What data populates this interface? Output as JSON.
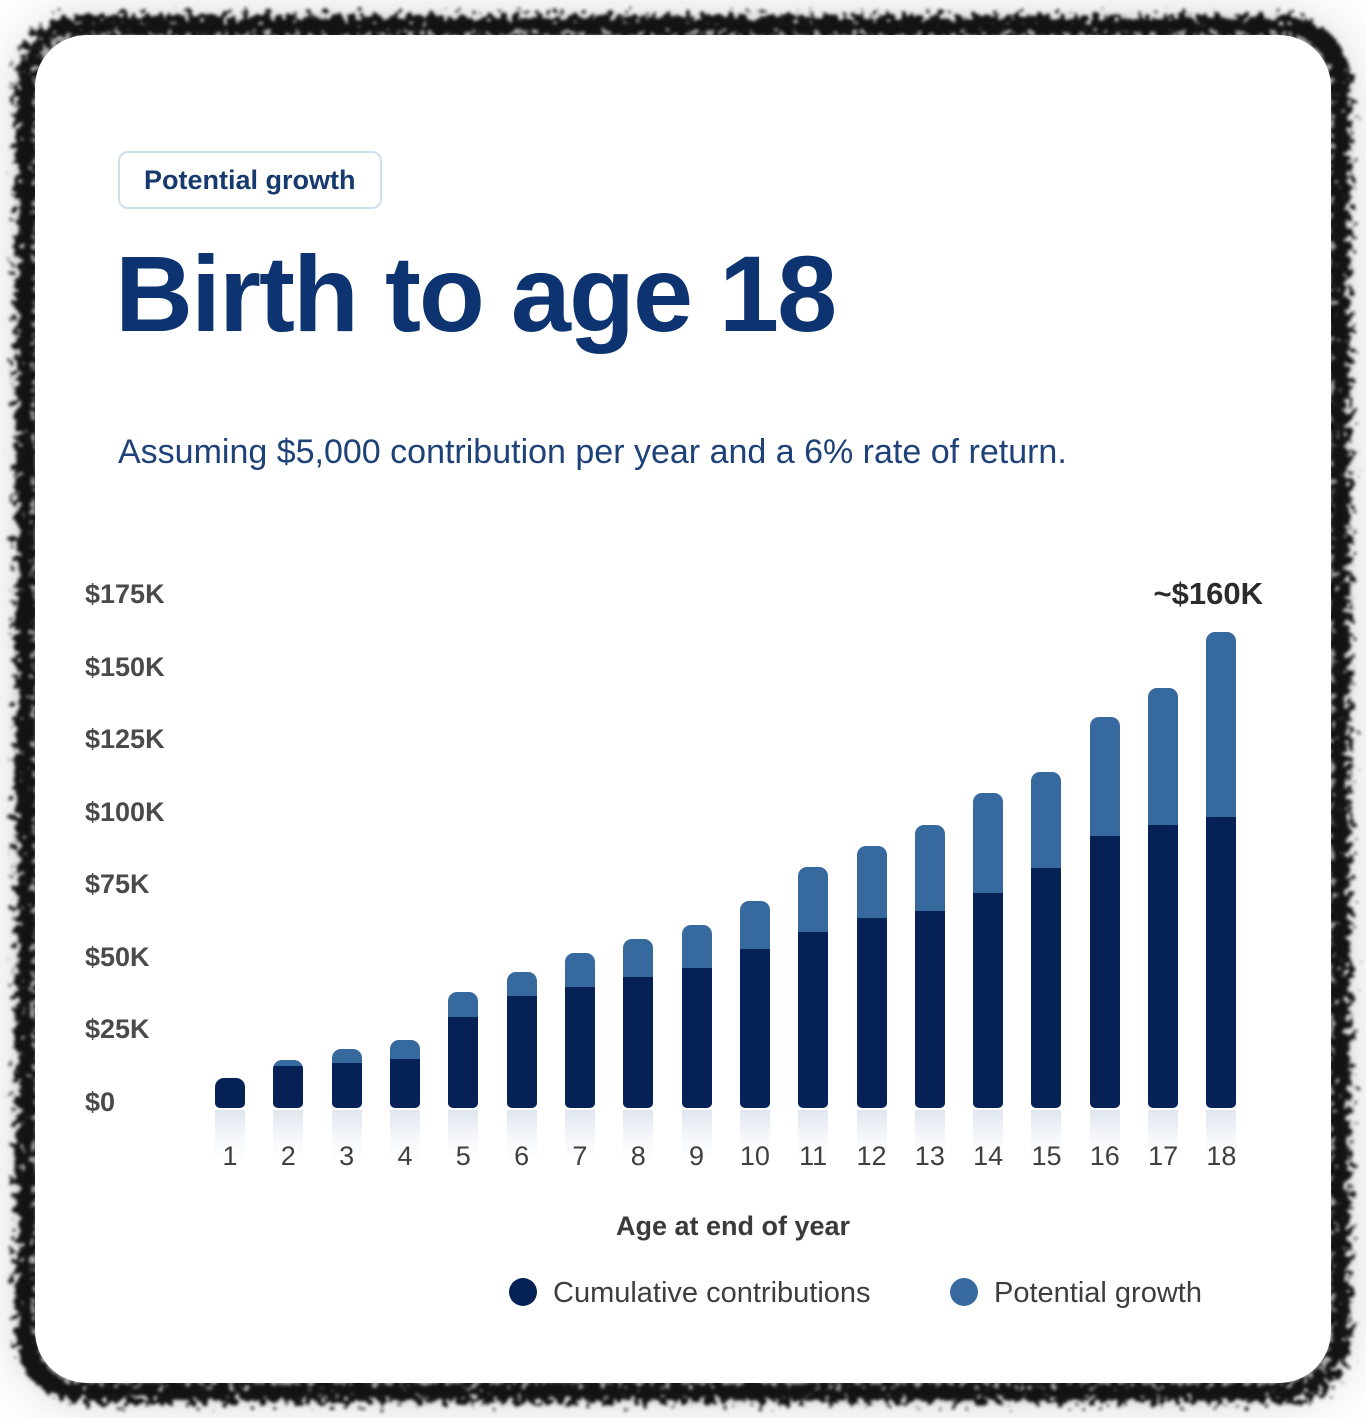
{
  "badge": {
    "label": "Potential growth"
  },
  "title": "Birth to age 18",
  "subtitle": "Assuming $5,000 contribution per year and a 6% rate of return.",
  "annotation": "~$160K",
  "axis": {
    "x_title": "Age at end of year",
    "y_tick_labels": [
      "$175K",
      "$150K",
      "$125K",
      "$100K",
      "$75K",
      "$50K",
      "$25K",
      "$0"
    ],
    "x_tick_labels": [
      "1",
      "2",
      "3",
      "4",
      "5",
      "6",
      "7",
      "8",
      "9",
      "10",
      "11",
      "12",
      "13",
      "14",
      "15",
      "16",
      "17",
      "18"
    ]
  },
  "legend": [
    {
      "label": "Cumulative contributions",
      "color": "#052155"
    },
    {
      "label": "Potential growth",
      "color": "#36699e"
    }
  ],
  "colors": {
    "card_bg": "#ffffff",
    "title": "#0d3470",
    "subtitle": "#1e4178",
    "badge_text": "#16396e",
    "badge_border": "#cddeed",
    "bar_dark": "#052155",
    "bar_light": "#36699e",
    "axis_label": "#4a4a4a",
    "tick_label": "#3f3f3f",
    "annotation": "#2b2b2b",
    "legend_text": "#3d3d3d"
  },
  "chart_data": {
    "type": "bar",
    "stacked": true,
    "title": "Birth to age 18",
    "subtitle": "Assuming $5,000 contribution per year and a 6% rate of return.",
    "xlabel": "Age at end of year",
    "ylabel": "",
    "units": "USD thousands",
    "ylim": [
      0,
      175
    ],
    "ytick_step": 25,
    "grid": false,
    "legend_position": "bottom",
    "peak_annotation": {
      "category": "18",
      "text": "~$160K"
    },
    "categories": [
      "1",
      "2",
      "3",
      "4",
      "5",
      "6",
      "7",
      "8",
      "9",
      "10",
      "11",
      "12",
      "13",
      "14",
      "15",
      "16",
      "17",
      "18"
    ],
    "series": [
      {
        "name": "Cumulative contributions",
        "color": "#052155",
        "values": [
          10.3,
          14.4,
          15.5,
          16.9,
          31.3,
          38.5,
          41.6,
          45.0,
          48.1,
          54.6,
          60.4,
          65.3,
          67.7,
          73.9,
          82.5,
          93.5,
          97.3,
          100.1
        ]
      },
      {
        "name": "Potential growth",
        "color": "#36699e",
        "values": [
          0,
          2.1,
          4.8,
          6.5,
          8.6,
          8.3,
          11.7,
          13.1,
          14.8,
          16.6,
          22.5,
          24.8,
          29.6,
          34.4,
          33.0,
          41.0,
          47.1,
          63.6
        ]
      }
    ],
    "totals": [
      10.3,
      16.5,
      20.3,
      23.4,
      39.9,
      46.8,
      53.3,
      58.1,
      62.9,
      71.2,
      82.9,
      90.1,
      97.3,
      108.3,
      115.5,
      134.5,
      144.4,
      163.7
    ]
  }
}
